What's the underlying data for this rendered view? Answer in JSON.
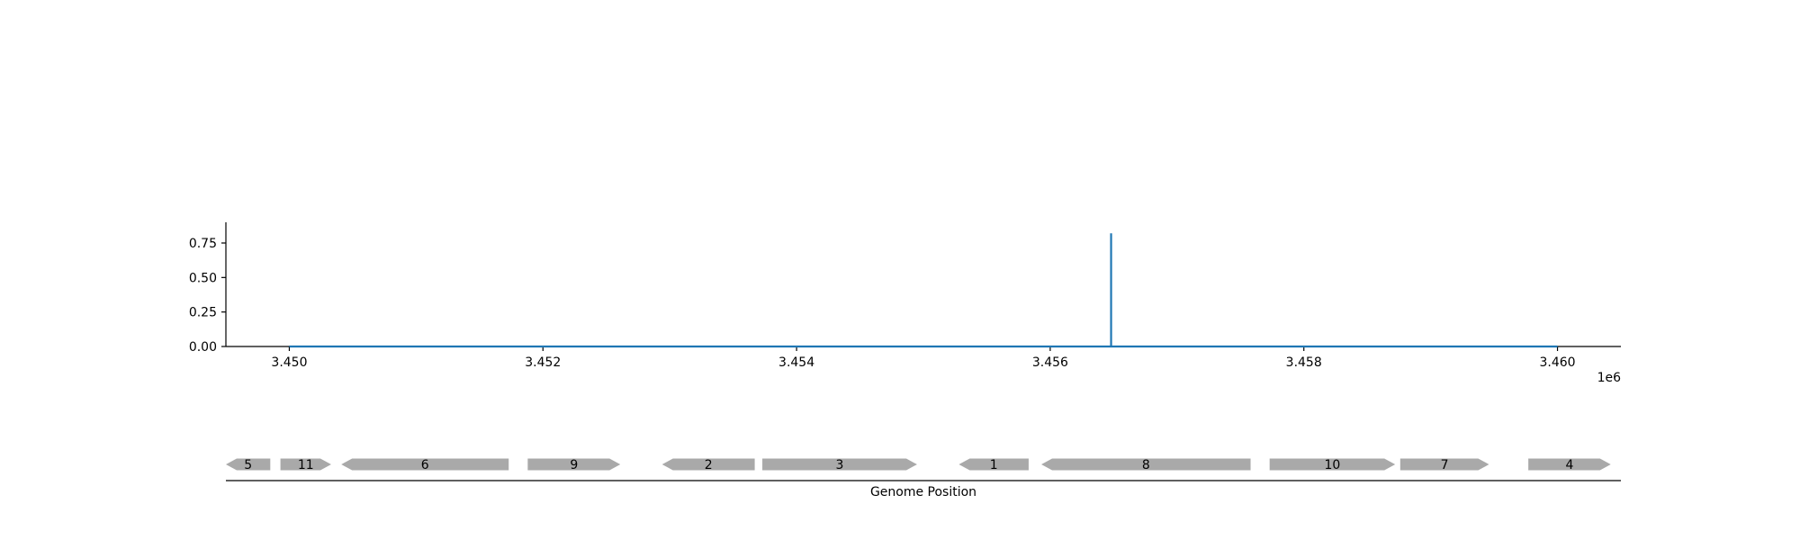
{
  "chart_data": [
    {
      "type": "line",
      "title": "",
      "xlabel": "",
      "ylabel": "",
      "x_offset_label": "1e6",
      "xlim": [
        3449500,
        3460500
      ],
      "ylim": [
        0,
        0.9
      ],
      "xticks": [
        3450000,
        3452000,
        3454000,
        3456000,
        3458000,
        3460000
      ],
      "xtick_labels": [
        "3.450",
        "3.452",
        "3.454",
        "3.456",
        "3.458",
        "3.460"
      ],
      "yticks": [
        0,
        0.25,
        0.5,
        0.75
      ],
      "ytick_labels": [
        "0.00",
        "0.25",
        "0.50",
        "0.75"
      ],
      "grid": false,
      "color": "#1f77b4",
      "series": [
        {
          "x": [
            3450000,
            3456480,
            3456480,
            3456480,
            3456480,
            3460000
          ],
          "y": [
            0,
            0,
            0.82,
            0.82,
            0,
            0
          ]
        }
      ]
    },
    {
      "type": "gene_track",
      "xlabel": "Genome Position",
      "xlim": [
        3449500,
        3460500
      ],
      "color": "#a9a9a9",
      "genes": [
        {
          "label": "5",
          "start": 3449500,
          "end": 3449850,
          "strand": "-"
        },
        {
          "label": "11",
          "start": 3449930,
          "end": 3450330,
          "strand": "+"
        },
        {
          "label": "6",
          "start": 3450410,
          "end": 3451730,
          "strand": "-"
        },
        {
          "label": "9",
          "start": 3451880,
          "end": 3452610,
          "strand": "+"
        },
        {
          "label": "2",
          "start": 3452940,
          "end": 3453670,
          "strand": "-"
        },
        {
          "label": "3",
          "start": 3453730,
          "end": 3454950,
          "strand": "+"
        },
        {
          "label": "1",
          "start": 3455280,
          "end": 3455830,
          "strand": "-"
        },
        {
          "label": "8",
          "start": 3455930,
          "end": 3457580,
          "strand": "-"
        },
        {
          "label": "10",
          "start": 3457730,
          "end": 3458720,
          "strand": "+"
        },
        {
          "label": "7",
          "start": 3458760,
          "end": 3459460,
          "strand": "+"
        },
        {
          "label": "4",
          "start": 3459770,
          "end": 3460420,
          "strand": "+"
        }
      ]
    }
  ]
}
